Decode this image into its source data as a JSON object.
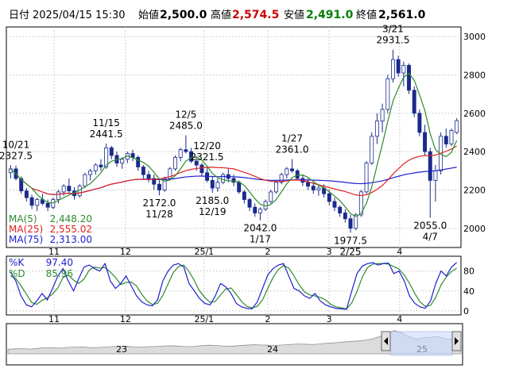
{
  "header": {
    "date_label": "日付",
    "date_value": "2025/04/15 15:30",
    "open_label": "始値",
    "open_value": "2,500.0",
    "high_label": "高値",
    "high_value": "2,574.5",
    "low_label": "安値",
    "low_value": "2,491.0",
    "close_label": "終値",
    "close_value": "2,561.0",
    "colors": {
      "open": "#000000",
      "high": "#cc0000",
      "low": "#008000",
      "close": "#000000"
    }
  },
  "chart_data": [
    {
      "type": "candlestick",
      "yticks": [
        "3000",
        "2800",
        "2600",
        "2400",
        "2200",
        "2000"
      ],
      "ylim": [
        1900,
        3050
      ],
      "xticks": [
        "11",
        "12",
        "25/1",
        "2",
        "3",
        "4"
      ],
      "grid": true,
      "colors": {
        "up": "#ffffff",
        "down": "#1a2a8c",
        "ma5": "#2e8b2e",
        "ma25": "#e02020",
        "ma75": "#2020d0"
      },
      "annotations": [
        {
          "date": "10/21",
          "value": "2327.5"
        },
        {
          "date": "11/15",
          "value": "2441.5"
        },
        {
          "date": "12/5",
          "value": "2485.0"
        },
        {
          "date": "12/20",
          "value": "2321.5"
        },
        {
          "date": "1/27",
          "value": "2361.0"
        },
        {
          "date": "3/21",
          "value": "2931.5"
        },
        {
          "value": "2172.0",
          "date": "11/28"
        },
        {
          "value": "2185.0",
          "date": "12/19"
        },
        {
          "value": "2042.0",
          "date": "1/17"
        },
        {
          "value": "1977.5",
          "date": "2/25"
        },
        {
          "value": "2055.0",
          "date": "4/7"
        }
      ],
      "legend": [
        {
          "label": "MA(5)",
          "value": "2,448.20",
          "color": "#2e8b2e"
        },
        {
          "label": "MA(25)",
          "value": "2,555.02",
          "color": "#e02020"
        },
        {
          "label": "MA(75)",
          "value": "2,313.00",
          "color": "#2020d0"
        }
      ],
      "candles": [
        [
          2290,
          2330,
          2260,
          2310
        ],
        [
          2310,
          2327.5,
          2250,
          2260
        ],
        [
          2260,
          2270,
          2180,
          2195
        ],
        [
          2195,
          2210,
          2140,
          2160
        ],
        [
          2160,
          2175,
          2100,
          2120
        ],
        [
          2120,
          2160,
          2090,
          2150
        ],
        [
          2150,
          2180,
          2120,
          2130
        ],
        [
          2130,
          2150,
          2090,
          2110
        ],
        [
          2110,
          2160,
          2100,
          2150
        ],
        [
          2150,
          2200,
          2130,
          2190
        ],
        [
          2190,
          2230,
          2170,
          2220
        ],
        [
          2220,
          2260,
          2180,
          2195
        ],
        [
          2195,
          2215,
          2150,
          2170
        ],
        [
          2170,
          2230,
          2160,
          2220
        ],
        [
          2220,
          2290,
          2210,
          2280
        ],
        [
          2280,
          2310,
          2250,
          2300
        ],
        [
          2300,
          2340,
          2280,
          2330
        ],
        [
          2330,
          2360,
          2300,
          2320
        ],
        [
          2320,
          2441.5,
          2310,
          2420
        ],
        [
          2420,
          2430,
          2360,
          2380
        ],
        [
          2380,
          2400,
          2320,
          2340
        ],
        [
          2340,
          2370,
          2310,
          2360
        ],
        [
          2360,
          2400,
          2340,
          2390
        ],
        [
          2390,
          2410,
          2350,
          2370
        ],
        [
          2370,
          2380,
          2300,
          2320
        ],
        [
          2320,
          2330,
          2260,
          2280
        ],
        [
          2280,
          2300,
          2240,
          2260
        ],
        [
          2260,
          2280,
          2200,
          2230
        ],
        [
          2230,
          2250,
          2172,
          2200
        ],
        [
          2200,
          2270,
          2190,
          2260
        ],
        [
          2260,
          2320,
          2250,
          2310
        ],
        [
          2310,
          2380,
          2300,
          2370
        ],
        [
          2370,
          2420,
          2350,
          2410
        ],
        [
          2410,
          2485,
          2390,
          2400
        ],
        [
          2400,
          2420,
          2340,
          2350
        ],
        [
          2350,
          2370,
          2300,
          2330
        ],
        [
          2330,
          2340,
          2270,
          2290
        ],
        [
          2290,
          2321.5,
          2240,
          2250
        ],
        [
          2250,
          2270,
          2185,
          2210
        ],
        [
          2210,
          2260,
          2190,
          2240
        ],
        [
          2240,
          2290,
          2230,
          2280
        ],
        [
          2280,
          2310,
          2240,
          2260
        ],
        [
          2260,
          2280,
          2220,
          2240
        ],
        [
          2240,
          2250,
          2180,
          2190
        ],
        [
          2190,
          2200,
          2130,
          2150
        ],
        [
          2150,
          2160,
          2090,
          2110
        ],
        [
          2110,
          2130,
          2060,
          2080
        ],
        [
          2080,
          2110,
          2042,
          2100
        ],
        [
          2100,
          2150,
          2090,
          2140
        ],
        [
          2140,
          2200,
          2130,
          2190
        ],
        [
          2190,
          2250,
          2180,
          2240
        ],
        [
          2240,
          2290,
          2230,
          2280
        ],
        [
          2280,
          2320,
          2260,
          2310
        ],
        [
          2310,
          2361,
          2290,
          2300
        ],
        [
          2300,
          2310,
          2250,
          2260
        ],
        [
          2260,
          2280,
          2220,
          2240
        ],
        [
          2240,
          2260,
          2200,
          2220
        ],
        [
          2220,
          2240,
          2180,
          2200
        ],
        [
          2200,
          2230,
          2170,
          2210
        ],
        [
          2210,
          2230,
          2160,
          2180
        ],
        [
          2180,
          2200,
          2120,
          2140
        ],
        [
          2140,
          2160,
          2090,
          2110
        ],
        [
          2110,
          2120,
          2060,
          2080
        ],
        [
          2080,
          2100,
          2030,
          2050
        ],
        [
          2050,
          2070,
          1977.5,
          2000
        ],
        [
          2000,
          2080,
          1990,
          2070
        ],
        [
          2070,
          2200,
          2060,
          2190
        ],
        [
          2190,
          2350,
          2180,
          2340
        ],
        [
          2340,
          2500,
          2330,
          2480
        ],
        [
          2480,
          2600,
          2440,
          2560
        ],
        [
          2560,
          2650,
          2500,
          2620
        ],
        [
          2620,
          2800,
          2600,
          2780
        ],
        [
          2780,
          2931.5,
          2760,
          2880
        ],
        [
          2880,
          2900,
          2790,
          2810
        ],
        [
          2810,
          2870,
          2740,
          2850
        ],
        [
          2850,
          2860,
          2700,
          2720
        ],
        [
          2720,
          2740,
          2580,
          2600
        ],
        [
          2600,
          2620,
          2480,
          2500
        ],
        [
          2500,
          2540,
          2380,
          2400
        ],
        [
          2400,
          2420,
          2055,
          2250
        ],
        [
          2250,
          2330,
          2140,
          2300
        ],
        [
          2300,
          2500,
          2280,
          2480
        ],
        [
          2480,
          2520,
          2420,
          2440
        ],
        [
          2440,
          2520,
          2430,
          2510
        ],
        [
          2500,
          2574.5,
          2491,
          2561
        ]
      ]
    },
    {
      "type": "line",
      "legend": [
        {
          "label": "%K",
          "value": "97.40",
          "color": "#2020d0"
        },
        {
          "label": "%D",
          "value": "85.96",
          "color": "#2e8b2e"
        }
      ],
      "yticks": [
        "80",
        "40",
        "0"
      ],
      "ylim": [
        -5,
        105
      ],
      "xticks": [
        "11",
        "12",
        "25/1",
        "2",
        "3",
        "4"
      ],
      "k": [
        78,
        60,
        30,
        12,
        8,
        20,
        35,
        22,
        45,
        70,
        85,
        60,
        40,
        65,
        88,
        92,
        85,
        80,
        95,
        60,
        45,
        55,
        70,
        50,
        30,
        18,
        12,
        10,
        22,
        60,
        80,
        92,
        95,
        88,
        55,
        40,
        25,
        15,
        12,
        30,
        55,
        48,
        35,
        15,
        8,
        5,
        4,
        18,
        45,
        72,
        85,
        92,
        95,
        70,
        45,
        40,
        30,
        25,
        35,
        20,
        12,
        8,
        5,
        4,
        3,
        40,
        75,
        90,
        95,
        97,
        92,
        95,
        96,
        75,
        80,
        60,
        30,
        15,
        8,
        5,
        20,
        55,
        80,
        70,
        88,
        97.4
      ],
      "d": [
        70,
        65,
        50,
        34,
        17,
        13,
        21,
        26,
        34,
        46,
        67,
        72,
        62,
        55,
        64,
        82,
        88,
        86,
        87,
        78,
        67,
        53,
        57,
        58,
        50,
        33,
        20,
        13,
        15,
        31,
        54,
        77,
        89,
        92,
        79,
        61,
        40,
        27,
        17,
        19,
        32,
        44,
        46,
        33,
        19,
        9,
        6,
        9,
        22,
        45,
        67,
        83,
        91,
        86,
        70,
        52,
        38,
        32,
        30,
        27,
        22,
        13,
        8,
        6,
        4,
        16,
        39,
        68,
        87,
        94,
        95,
        95,
        94,
        89,
        84,
        72,
        55,
        35,
        18,
        9,
        11,
        27,
        52,
        68,
        79,
        85.96
      ]
    },
    {
      "type": "area",
      "xticks": [
        "23",
        "24",
        "25"
      ],
      "values": [
        2080,
        2100,
        2110,
        2090,
        2120,
        2150,
        2140,
        2130,
        2160,
        2170,
        2180,
        2160,
        2150,
        2170,
        2190,
        2200,
        2210,
        2180,
        2170,
        2190,
        2200,
        2220,
        2230,
        2210,
        2190,
        2200,
        2230,
        2250,
        2240,
        2220,
        2210,
        2230,
        2250,
        2270,
        2260,
        2250,
        2240,
        2260,
        2280,
        2300,
        2290,
        2280,
        2300,
        2330,
        2350,
        2380,
        2400,
        2420,
        2450,
        2500,
        2600,
        2700,
        2850,
        2750,
        2600,
        2500,
        2550,
        2580,
        2600,
        2500,
        2480,
        2550
      ]
    }
  ]
}
